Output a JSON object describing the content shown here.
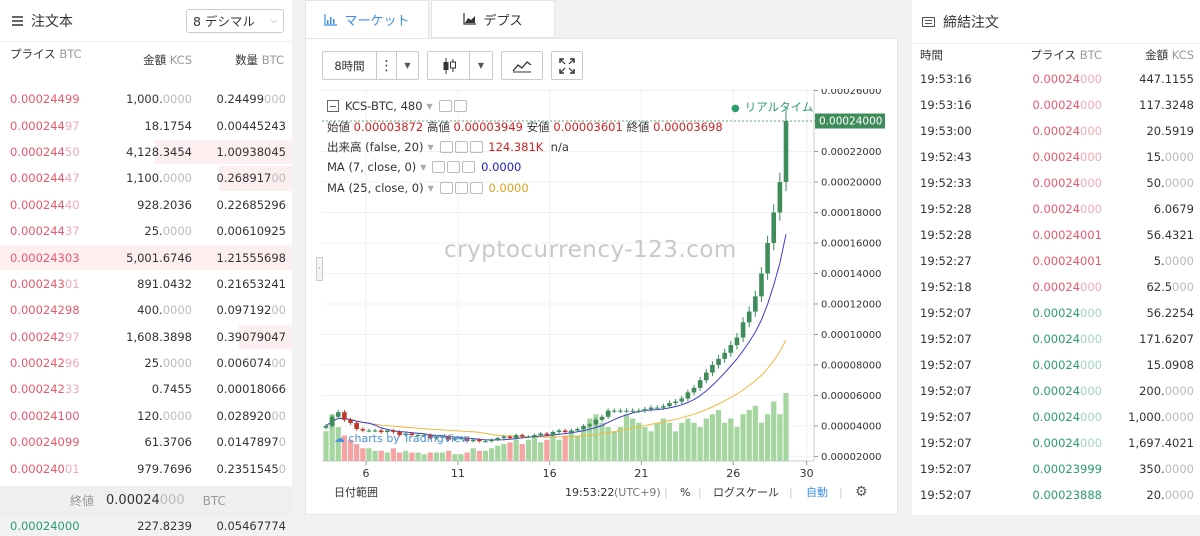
{
  "orderbook": {
    "title": "注文本",
    "decimals": "8 デシマル",
    "col_price": "プライス",
    "col_price_unit": "BTC",
    "col_amount": "金額",
    "col_amount_unit": "KCS",
    "col_qty": "数量",
    "col_qty_unit": "BTC",
    "asks": [
      {
        "price_main": "0.00024499",
        "price_dim": "",
        "amt_main": "1,000.",
        "amt_dim": "0000",
        "qty_main": "0.24499",
        "qty_dim": "000",
        "depth": 0
      },
      {
        "price_main": "0.000244",
        "price_dim": "97",
        "amt_main": "18.1754",
        "amt_dim": "",
        "qty_main": "0.00445243",
        "qty_dim": "",
        "depth": 0
      },
      {
        "price_main": "0.000244",
        "price_dim": "50",
        "amt_main": "4,128.3454",
        "amt_dim": "",
        "qty_main": "1.00938045",
        "qty_dim": "",
        "depth": 0.47
      },
      {
        "price_main": "0.000244",
        "price_dim": "47",
        "amt_main": "1,100.",
        "amt_dim": "0000",
        "qty_main": "0.268917",
        "qty_dim": "00",
        "depth": 0.25
      },
      {
        "price_main": "0.000244",
        "price_dim": "40",
        "amt_main": "928.2036",
        "amt_dim": "",
        "qty_main": "0.22685296",
        "qty_dim": "",
        "depth": 0
      },
      {
        "price_main": "0.000244",
        "price_dim": "37",
        "amt_main": "25.",
        "amt_dim": "0000",
        "qty_main": "0.00610925",
        "qty_dim": "",
        "depth": 0
      },
      {
        "price_main": "0.00024303",
        "price_dim": "",
        "amt_main": "5,001.6746",
        "amt_dim": "",
        "qty_main": "1.21555698",
        "qty_dim": "",
        "depth": 1.0
      },
      {
        "price_main": "0.000243",
        "price_dim": "01",
        "amt_main": "891.0432",
        "amt_dim": "",
        "qty_main": "0.21653241",
        "qty_dim": "",
        "depth": 0
      },
      {
        "price_main": "0.00024298",
        "price_dim": "",
        "amt_main": "400.",
        "amt_dim": "0000",
        "qty_main": "0.097192",
        "qty_dim": "00",
        "depth": 0
      },
      {
        "price_main": "0.000242",
        "price_dim": "97",
        "amt_main": "1,608.3898",
        "amt_dim": "",
        "qty_main": "0.39079047",
        "qty_dim": "",
        "depth": 0.18
      },
      {
        "price_main": "0.000242",
        "price_dim": "96",
        "amt_main": "25.",
        "amt_dim": "0000",
        "qty_main": "0.006074",
        "qty_dim": "00",
        "depth": 0
      },
      {
        "price_main": "0.000242",
        "price_dim": "33",
        "amt_main": "0.7455",
        "amt_dim": "",
        "qty_main": "0.00018066",
        "qty_dim": "",
        "depth": 0
      },
      {
        "price_main": "0.00024100",
        "price_dim": "",
        "amt_main": "120.",
        "amt_dim": "0000",
        "qty_main": "0.028920",
        "qty_dim": "00",
        "depth": 0
      },
      {
        "price_main": "0.00024099",
        "price_dim": "",
        "amt_main": "61.3706",
        "amt_dim": "",
        "qty_main": "0.0147897",
        "qty_dim": "0",
        "depth": 0
      },
      {
        "price_main": "0.000240",
        "price_dim": "01",
        "amt_main": "979.7696",
        "amt_dim": "",
        "qty_main": "0.2351545",
        "qty_dim": "0",
        "depth": 0
      }
    ],
    "last_label": "終値",
    "last_main": "0.00024",
    "last_dim": "000",
    "last_unit": "BTC",
    "bid_price": "0.00024000",
    "bid_amount": "227.8239",
    "bid_qty": "0.05467774"
  },
  "chart": {
    "tab_market": "マーケット",
    "tab_depth": "デプス",
    "interval": "8時間",
    "symbol": "KCS-BTC, 480",
    "realtime": "リアルタイム",
    "ohlc_open_label": "始値",
    "ohlc_open": "0.00003872",
    "ohlc_high_label": "高値",
    "ohlc_high": "0.00003949",
    "ohlc_low_label": "安値",
    "ohlc_low": "0.00003601",
    "ohlc_close_label": "終値",
    "ohlc_close": "0.00003698",
    "volume_label": "出来高 (false, 20)",
    "volume_value": "124.381K",
    "volume_na": "n/a",
    "ma7_label": "MA (7, close, 0)",
    "ma7_value": "0.0000",
    "ma25_label": "MA (25, close, 0)",
    "ma25_value": "0.0000",
    "watermark": "cryptocurrency-123.com",
    "tv_logo": "charts by TradingView",
    "current_price_tag": "0.00024000",
    "date_range": "日付範囲",
    "time": "19:53:22",
    "timezone": "(UTC+9)",
    "percent": "%",
    "log_scale": "ログスケール",
    "auto": "自動",
    "colors": {
      "up": "#3d8c5a",
      "down": "#c0392b",
      "vol_up": "#a5d6a0",
      "vol_down": "#f5a3a3",
      "ma7": "#3c3cd0",
      "ma25": "#f0b840"
    }
  },
  "chart_data": {
    "type": "candlestick",
    "x_tick_labels": [
      "6",
      "11",
      "16",
      "21",
      "26",
      "30"
    ],
    "y_tick_labels": [
      "0.00002000",
      "0.00004000",
      "0.00006000",
      "0.00008000",
      "0.00010000",
      "0.00012000",
      "0.00014000",
      "0.00016000",
      "0.00018000",
      "0.00020000",
      "0.00022000",
      "0.00024000",
      "0.00026000"
    ],
    "ylim": [
      1.7e-05,
      0.000261
    ],
    "xlim": [
      3.6,
      30.4
    ],
    "candles_note": "approximate close prices per 8h bar",
    "closes": [
      4e-05,
      4.6e-05,
      4.9e-05,
      4.4e-05,
      4.2e-05,
      3.8e-05,
      3.7e-05,
      3.7e-05,
      3.7e-05,
      3.6e-05,
      3.7e-05,
      3.6e-05,
      3.4e-05,
      3.5e-05,
      3.4e-05,
      3.4e-05,
      3.4e-05,
      3.2e-05,
      3.3e-05,
      3.3e-05,
      3.1e-05,
      3.2e-05,
      3.2e-05,
      3e-05,
      3.1e-05,
      3e-05,
      3e-05,
      3.1e-05,
      3.2e-05,
      3.3e-05,
      3.2e-05,
      3.4e-05,
      3.3e-05,
      3.3e-05,
      3.4e-05,
      3.5e-05,
      3.4e-05,
      3.6e-05,
      3.7e-05,
      3.6e-05,
      3.7e-05,
      3.8e-05,
      4e-05,
      4.1e-05,
      4.4e-05,
      4.6e-05,
      5e-05,
      5e-05,
      5e-05,
      5e-05,
      5e-05,
      5e-05,
      5.1e-05,
      5.2e-05,
      5.2e-05,
      5.3e-05,
      5.5e-05,
      5.6e-05,
      5.8e-05,
      6.2e-05,
      6.5e-05,
      7e-05,
      7.5e-05,
      8e-05,
      8.4e-05,
      8.8e-05,
      9.3e-05,
      9.8e-05,
      0.000108,
      0.000115,
      0.000125,
      0.00014,
      0.00016,
      0.00018,
      0.0002,
      0.00024
    ],
    "volumes": [
      0.35,
      0.55,
      0.4,
      0.3,
      0.25,
      0.2,
      0.15,
      0.15,
      0.12,
      0.12,
      0.1,
      0.15,
      0.1,
      0.12,
      0.1,
      0.1,
      0.08,
      0.1,
      0.1,
      0.1,
      0.12,
      0.08,
      0.08,
      0.1,
      0.15,
      0.12,
      0.12,
      0.15,
      0.18,
      0.2,
      0.22,
      0.25,
      0.2,
      0.25,
      0.3,
      0.22,
      0.25,
      0.3,
      0.25,
      0.3,
      0.35,
      0.3,
      0.4,
      0.5,
      0.55,
      0.45,
      0.4,
      0.35,
      0.4,
      0.55,
      0.5,
      0.45,
      0.4,
      0.35,
      0.45,
      0.5,
      0.45,
      0.35,
      0.45,
      0.5,
      0.45,
      0.4,
      0.5,
      0.55,
      0.6,
      0.45,
      0.5,
      0.4,
      0.55,
      0.6,
      0.65,
      0.45,
      0.55,
      0.7,
      0.55,
      0.8
    ]
  },
  "trades": {
    "title": "締結注文",
    "col_time": "時間",
    "col_price": "プライス",
    "col_price_unit": "BTC",
    "col_amount": "金額",
    "col_amount_unit": "KCS",
    "rows": [
      {
        "time": "19:53:16",
        "side": "sell",
        "price_main": "0.00024",
        "price_dim": "000",
        "amt_main": "447.1155",
        "amt_dim": ""
      },
      {
        "time": "19:53:16",
        "side": "sell",
        "price_main": "0.00024",
        "price_dim": "000",
        "amt_main": "117.3248",
        "amt_dim": ""
      },
      {
        "time": "19:53:00",
        "side": "sell",
        "price_main": "0.00024",
        "price_dim": "000",
        "amt_main": "20.5919",
        "amt_dim": ""
      },
      {
        "time": "19:52:43",
        "side": "sell",
        "price_main": "0.00024",
        "price_dim": "000",
        "amt_main": "15.",
        "amt_dim": "0000"
      },
      {
        "time": "19:52:33",
        "side": "sell",
        "price_main": "0.00024",
        "price_dim": "000",
        "amt_main": "50.",
        "amt_dim": "0000"
      },
      {
        "time": "19:52:28",
        "side": "sell",
        "price_main": "0.00024",
        "price_dim": "000",
        "amt_main": "6.0679",
        "amt_dim": ""
      },
      {
        "time": "19:52:28",
        "side": "sell",
        "price_main": "0.00024001",
        "price_dim": "",
        "amt_main": "56.4321",
        "amt_dim": ""
      },
      {
        "time": "19:52:27",
        "side": "sell",
        "price_main": "0.00024001",
        "price_dim": "",
        "amt_main": "5.",
        "amt_dim": "0000"
      },
      {
        "time": "19:52:18",
        "side": "sell",
        "price_main": "0.00024",
        "price_dim": "000",
        "amt_main": "62.5",
        "amt_dim": "000"
      },
      {
        "time": "19:52:07",
        "side": "buy",
        "price_main": "0.00024",
        "price_dim": "000",
        "amt_main": "56.2254",
        "amt_dim": ""
      },
      {
        "time": "19:52:07",
        "side": "buy",
        "price_main": "0.00024",
        "price_dim": "000",
        "amt_main": "171.6207",
        "amt_dim": ""
      },
      {
        "time": "19:52:07",
        "side": "buy",
        "price_main": "0.00024",
        "price_dim": "000",
        "amt_main": "15.0908",
        "amt_dim": ""
      },
      {
        "time": "19:52:07",
        "side": "buy",
        "price_main": "0.00024",
        "price_dim": "000",
        "amt_main": "200.",
        "amt_dim": "0000"
      },
      {
        "time": "19:52:07",
        "side": "buy",
        "price_main": "0.00024",
        "price_dim": "000",
        "amt_main": "1,000.",
        "amt_dim": "0000"
      },
      {
        "time": "19:52:07",
        "side": "buy",
        "price_main": "0.00024",
        "price_dim": "000",
        "amt_main": "1,697.4021",
        "amt_dim": ""
      },
      {
        "time": "19:52:07",
        "side": "buy",
        "price_main": "0.00023999",
        "price_dim": "",
        "amt_main": "350.",
        "amt_dim": "0000"
      },
      {
        "time": "19:52:07",
        "side": "buy",
        "price_main": "0.00023888",
        "price_dim": "",
        "amt_main": "20.",
        "amt_dim": "0000"
      }
    ]
  }
}
